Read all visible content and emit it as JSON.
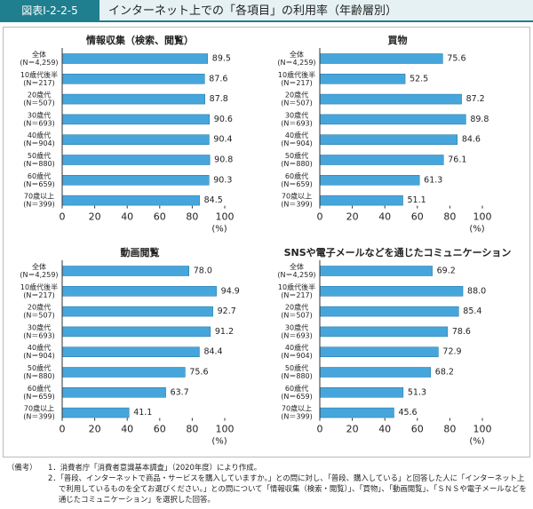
{
  "header": {
    "label": "図表Ⅰ-2-2-5",
    "title": "インターネット上での「各項目」の利用率（年齢層別）"
  },
  "chart_data": [
    {
      "type": "barh",
      "title": "情報収集（検索、閲覧）",
      "categories": [
        [
          "全体",
          "(N＝4,259)"
        ],
        [
          "10歳代後半",
          "(N＝217)"
        ],
        [
          "20歳代",
          "(N＝507)"
        ],
        [
          "30歳代",
          "(N＝693)"
        ],
        [
          "40歳代",
          "(N＝904)"
        ],
        [
          "50歳代",
          "(N＝880)"
        ],
        [
          "60歳代",
          "(N＝659)"
        ],
        [
          "70歳以上",
          "(N＝399)"
        ]
      ],
      "values": [
        89.5,
        87.6,
        87.8,
        90.6,
        90.4,
        90.8,
        90.3,
        84.5
      ],
      "color": "#46a6dc",
      "xlim": [
        0,
        100
      ],
      "xticks": [
        0,
        20,
        40,
        60,
        80,
        100
      ],
      "x_label": "(%)"
    },
    {
      "type": "barh",
      "title": "買物",
      "categories": [
        [
          "全体",
          "(N＝4,259)"
        ],
        [
          "10歳代後半",
          "(N＝217)"
        ],
        [
          "20歳代",
          "(N＝507)"
        ],
        [
          "30歳代",
          "(N＝693)"
        ],
        [
          "40歳代",
          "(N＝904)"
        ],
        [
          "50歳代",
          "(N＝880)"
        ],
        [
          "60歳代",
          "(N＝659)"
        ],
        [
          "70歳以上",
          "(N＝399)"
        ]
      ],
      "values": [
        75.6,
        52.5,
        87.2,
        89.8,
        84.6,
        76.1,
        61.3,
        51.1
      ],
      "color": "#46a6dc",
      "xlim": [
        0,
        100
      ],
      "xticks": [
        0,
        20,
        40,
        60,
        80,
        100
      ],
      "x_label": "(%)"
    },
    {
      "type": "barh",
      "title": "動画閲覧",
      "categories": [
        [
          "全体",
          "(N＝4,259)"
        ],
        [
          "10歳代後半",
          "(N＝217)"
        ],
        [
          "20歳代",
          "(N＝507)"
        ],
        [
          "30歳代",
          "(N＝693)"
        ],
        [
          "40歳代",
          "(N＝904)"
        ],
        [
          "50歳代",
          "(N＝880)"
        ],
        [
          "60歳代",
          "(N＝659)"
        ],
        [
          "70歳以上",
          "(N＝399)"
        ]
      ],
      "values": [
        78,
        94.9,
        92.7,
        91.2,
        84.4,
        75.6,
        63.7,
        41.1
      ],
      "value_labels": [
        "78.0",
        "94.9",
        "92.7",
        "91.2",
        "84.4",
        "75.6",
        "63.7",
        "41.1"
      ],
      "color": "#46a6dc",
      "xlim": [
        0,
        100
      ],
      "xticks": [
        0,
        20,
        40,
        60,
        80,
        100
      ],
      "x_label": "(%)"
    },
    {
      "type": "barh",
      "title": "SNSや電子メールなどを通じたコミュニケーション",
      "categories": [
        [
          "全体",
          "(N＝4,259)"
        ],
        [
          "10歳代後半",
          "(N＝217)"
        ],
        [
          "20歳代",
          "(N＝507)"
        ],
        [
          "30歳代",
          "(N＝693)"
        ],
        [
          "40歳代",
          "(N＝904)"
        ],
        [
          "50歳代",
          "(N＝880)"
        ],
        [
          "60歳代",
          "(N＝659)"
        ],
        [
          "70歳以上",
          "(N＝399)"
        ]
      ],
      "values": [
        69.2,
        88,
        85.4,
        78.6,
        72.9,
        68.2,
        51.3,
        45.6
      ],
      "value_labels": [
        "69.2",
        "88.0",
        "85.4",
        "78.6",
        "72.9",
        "68.2",
        "51.3",
        "45.6"
      ],
      "color": "#46a6dc",
      "xlim": [
        0,
        100
      ],
      "xticks": [
        0,
        20,
        40,
        60,
        80,
        100
      ],
      "x_label": "(%)"
    }
  ],
  "notes": {
    "label": "（備考）",
    "items": [
      "1．消費者庁「消費者意識基本調査」（2020年度）により作成。",
      "2．「普段、インターネットで商品・サービスを購入していますか。」との問に対し、「普段、購入している」と回答した人に「インターネット上で利用しているものを全てお選びください。」との問について「情報収集（検索・閲覧）」、「買物」、「動画閲覧」、「ＳＮＳや電子メールなどを通じたコミュニケーション」を選択した回答。"
    ]
  }
}
